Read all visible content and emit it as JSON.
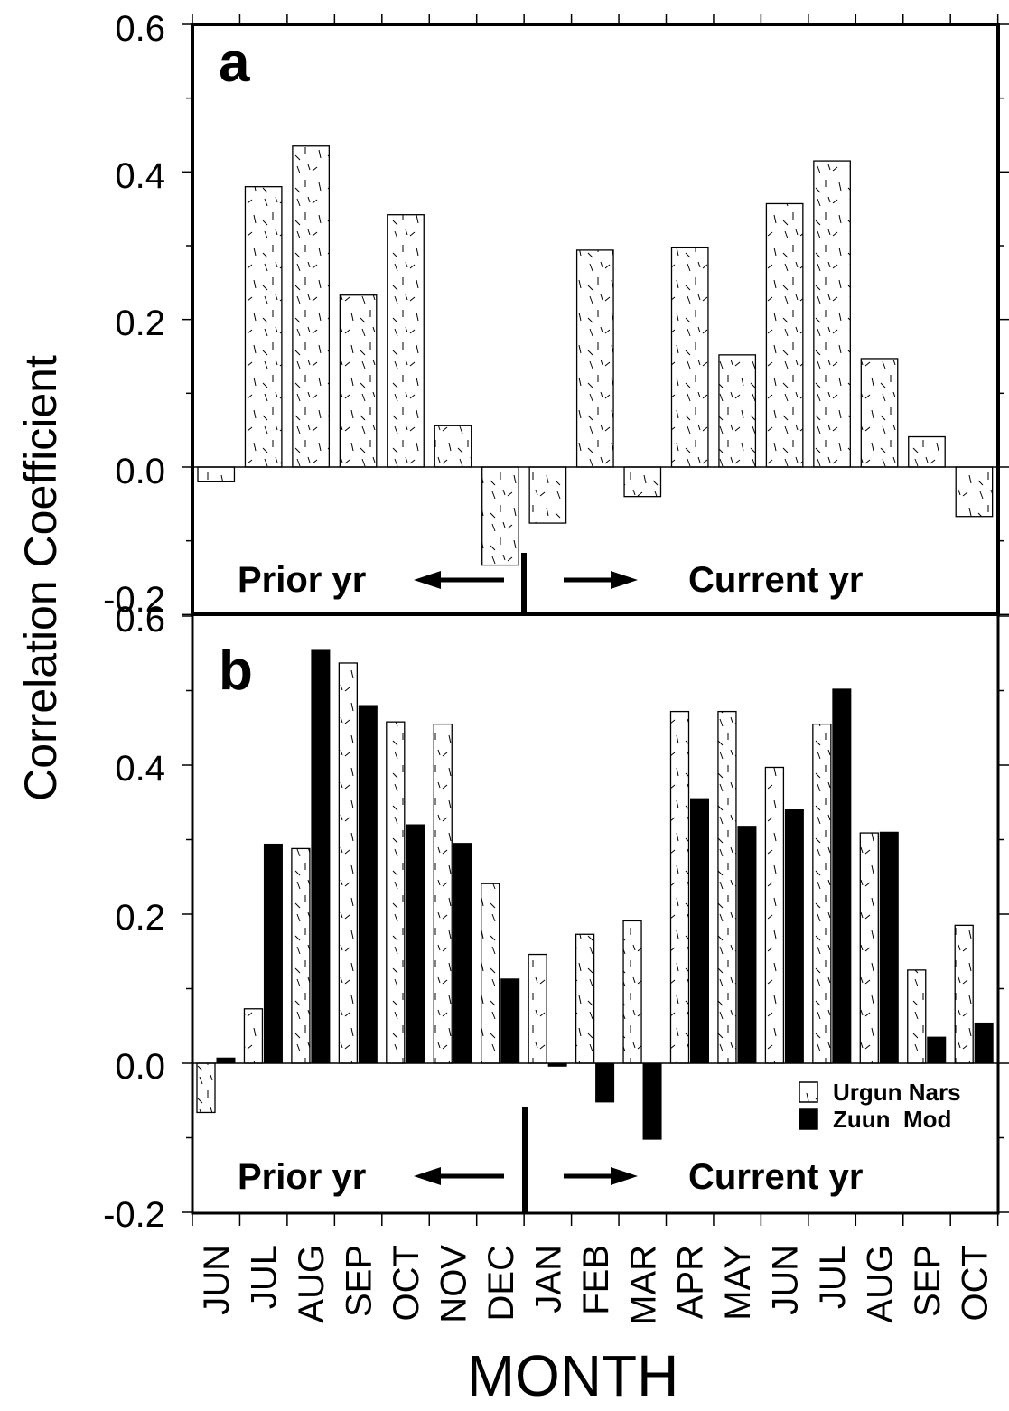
{
  "chart_data": [
    {
      "type": "bar",
      "panel": "a",
      "ylabel": "Correlation Coefficient",
      "ylim": [
        -0.2,
        0.6
      ],
      "yticks": [
        "0.6",
        "0.4",
        "0.2",
        "0.0",
        "-0.2"
      ],
      "categories": [
        "JUN",
        "JUL",
        "AUG",
        "SEP",
        "OCT",
        "NOV",
        "DEC",
        "JAN",
        "FEB",
        "MAR",
        "APR",
        "MAY",
        "JUN",
        "JUL",
        "AUG",
        "SEP",
        "OCT"
      ],
      "series": [
        {
          "values": [
            -0.02,
            0.38,
            0.435,
            0.233,
            0.342,
            0.056,
            -0.133,
            -0.076,
            0.294,
            -0.04,
            0.298,
            0.152,
            0.357,
            0.415,
            0.147,
            0.041,
            -0.067
          ]
        }
      ],
      "annotations": {
        "prior": "Prior yr",
        "current": "Current yr"
      }
    },
    {
      "type": "bar",
      "panel": "b",
      "xlabel": "MONTH",
      "ylim": [
        -0.2,
        0.6
      ],
      "yticks": [
        "0.6",
        "0.4",
        "0.2",
        "0.0",
        "-0.2"
      ],
      "categories": [
        "JUN",
        "JUL",
        "AUG",
        "SEP",
        "OCT",
        "NOV",
        "DEC",
        "JAN",
        "FEB",
        "MAR",
        "APR",
        "MAY",
        "JUN",
        "JUL",
        "AUG",
        "SEP",
        "OCT"
      ],
      "series": [
        {
          "name": "Urgun Nars",
          "pattern": "dashed",
          "values": [
            -0.066,
            0.073,
            0.288,
            0.537,
            0.458,
            0.455,
            0.241,
            0.146,
            0.173,
            0.191,
            0.472,
            0.472,
            0.397,
            0.455,
            0.309,
            0.125,
            0.185
          ]
        },
        {
          "name": "Zuun  Mod",
          "pattern": "solid",
          "color": "#000000",
          "values": [
            0.007,
            0.294,
            0.554,
            0.48,
            0.32,
            0.295,
            0.113,
            -0.004,
            -0.052,
            -0.102,
            0.355,
            0.318,
            0.34,
            0.502,
            0.31,
            0.035,
            0.054
          ]
        }
      ],
      "annotations": {
        "prior": "Prior yr",
        "current": "Current yr"
      },
      "legend_position": "bottom-right"
    }
  ]
}
